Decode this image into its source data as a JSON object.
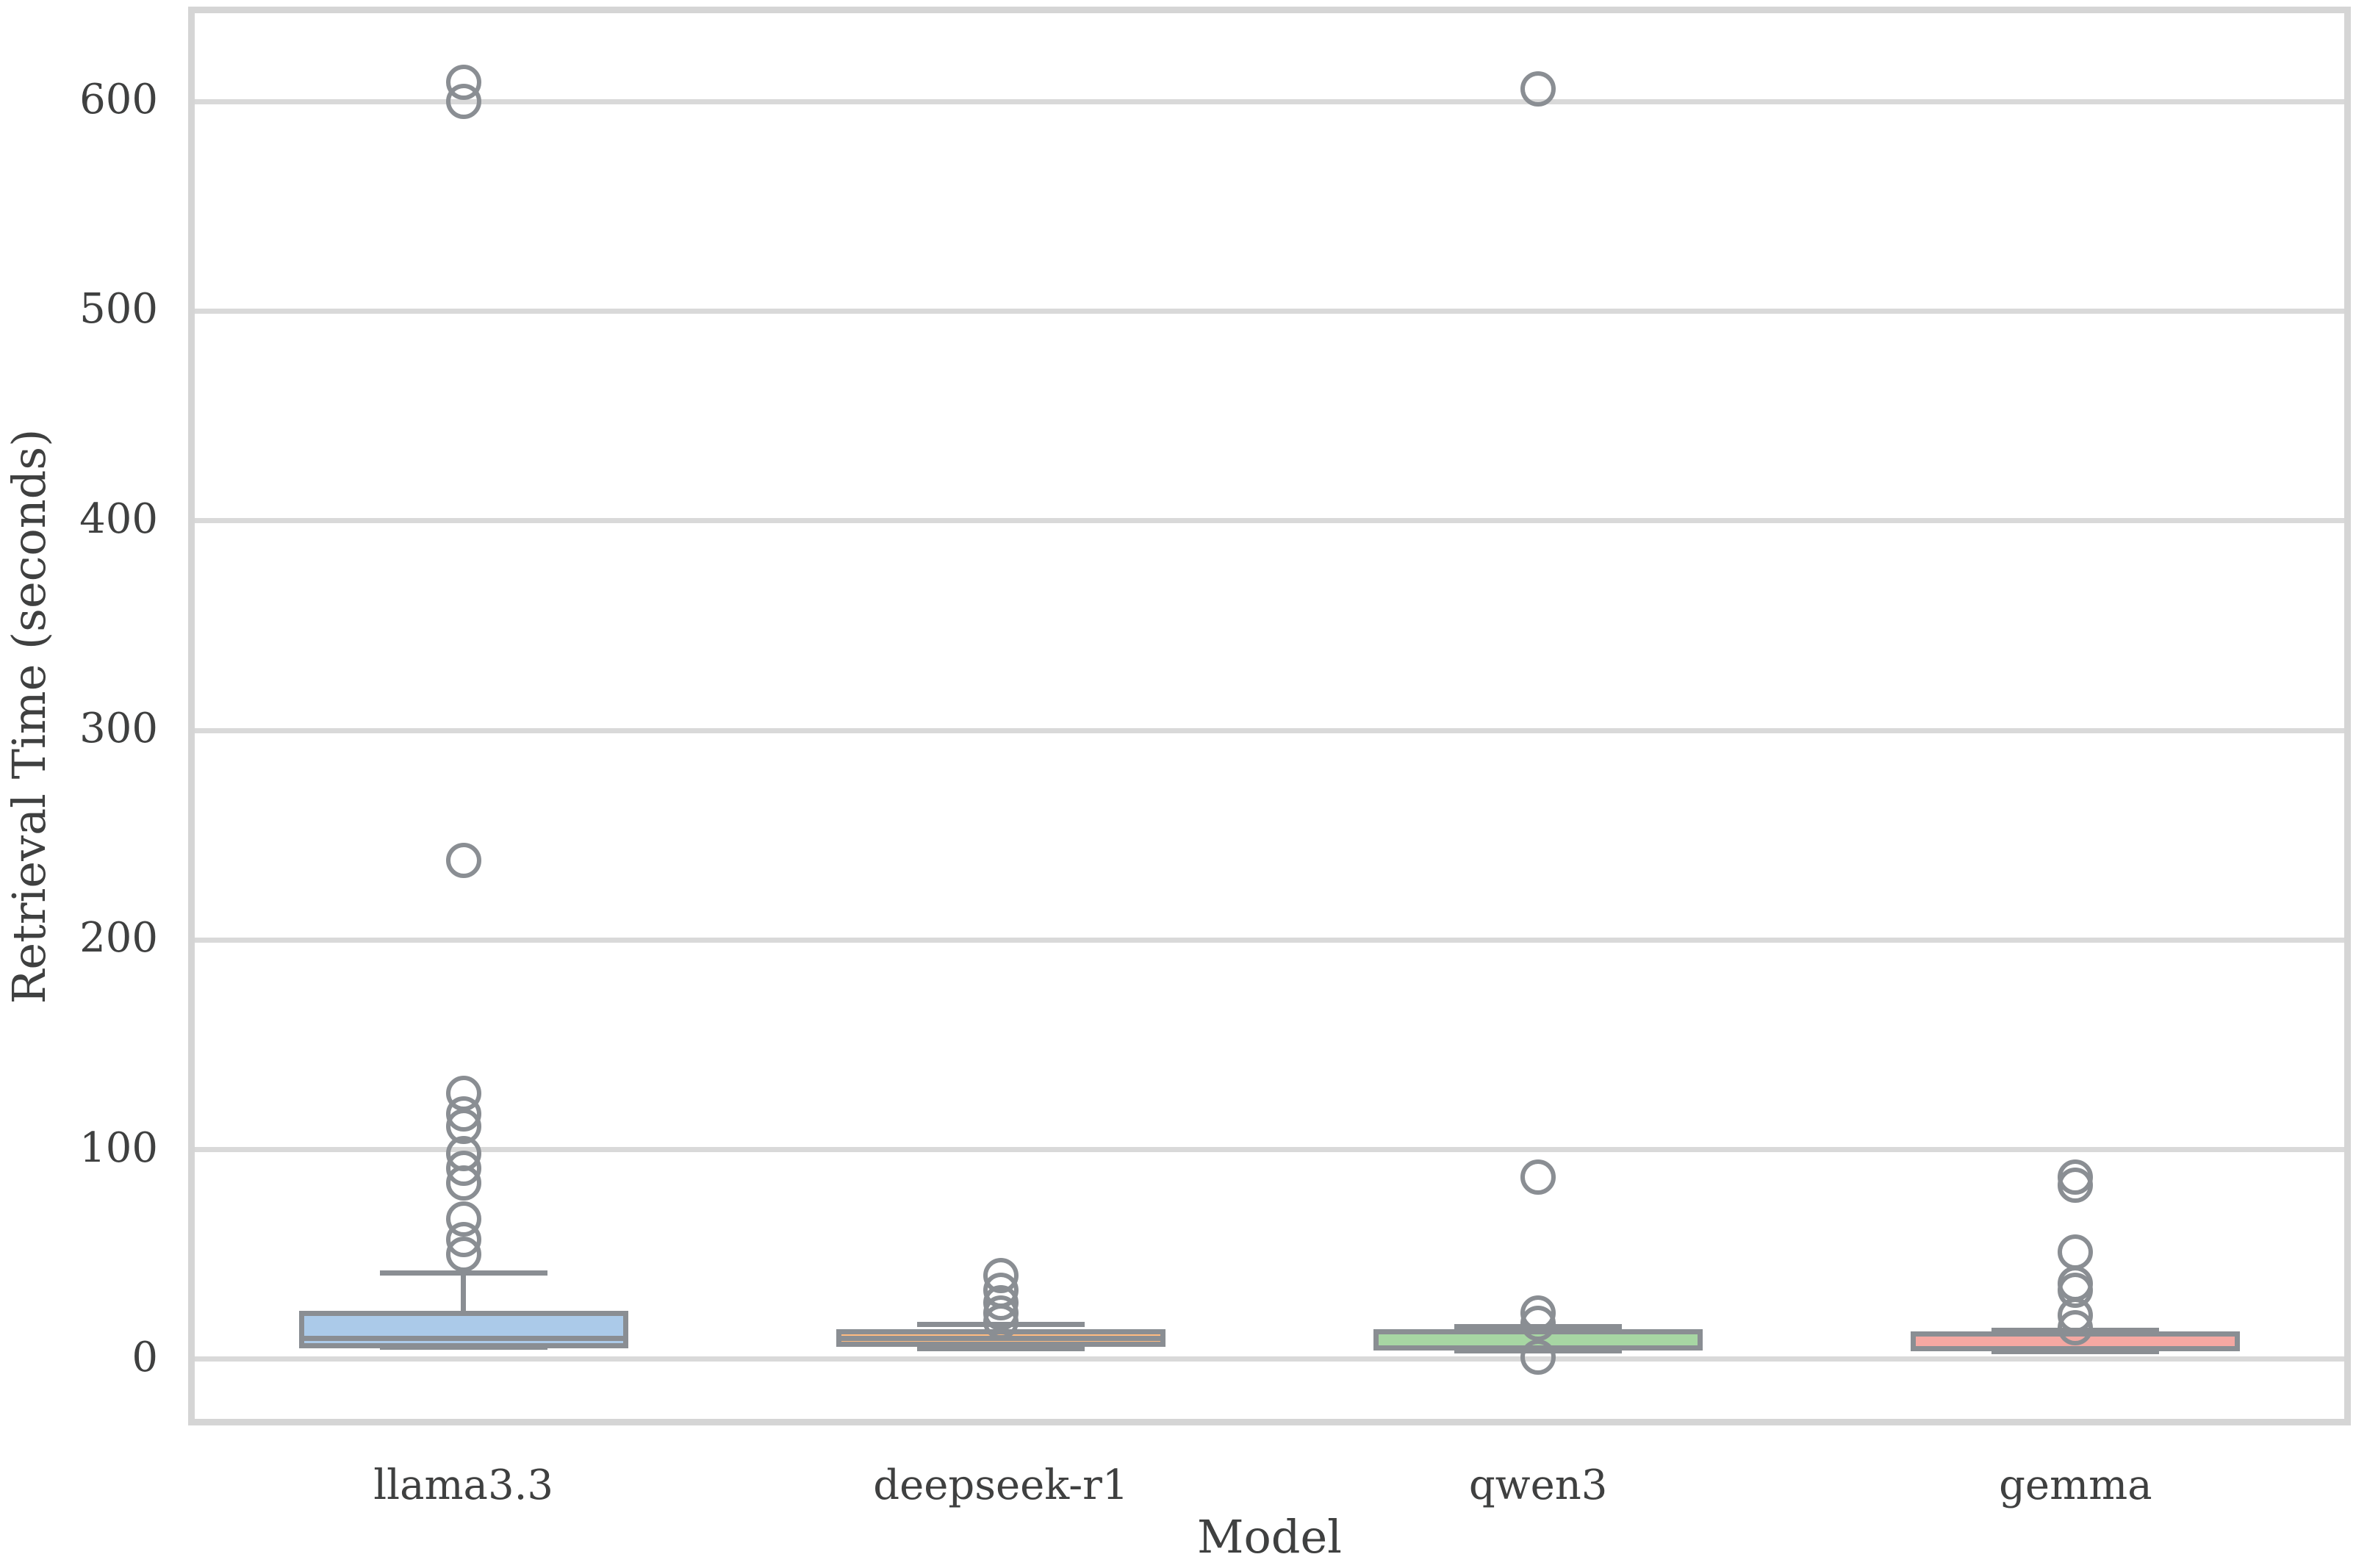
{
  "chart_data": {
    "type": "box",
    "title": "",
    "xlabel": "Model",
    "ylabel": "Retrieval Time (seconds)",
    "ylim": [
      -28.4,
      642.1
    ],
    "yticks": [
      0,
      100,
      200,
      300,
      400,
      500,
      600
    ],
    "grid": "horizontal-only",
    "legend": "none",
    "categories": [
      "llama3.3",
      "deepseek-r1",
      "qwen3",
      "gemma"
    ],
    "series": [
      {
        "model": "llama3.3",
        "whisker_low": 5.8,
        "q1": 6.5,
        "median": 10,
        "q3": 22,
        "whisker_high": 41,
        "outliers": [
          609,
          600,
          238,
          127,
          117,
          111,
          98,
          91,
          84,
          67,
          57,
          50
        ],
        "box_fill": "#abcae9",
        "median_line_visible": true
      },
      {
        "model": "deepseek-r1",
        "whisker_low": 5,
        "q1": 7,
        "median": 10,
        "q3": 13,
        "whisker_high": 16.5,
        "outliers": [
          40,
          33,
          27,
          22,
          18
        ],
        "box_fill": "#ffbb80",
        "median_line_visible": true
      },
      {
        "model": "qwen3",
        "whisker_low": 4,
        "q1": 5.5,
        "median": 9.8,
        "q3": 13,
        "whisker_high": 15.5,
        "outliers": [
          606,
          87,
          22,
          17,
          1
        ],
        "box_fill": "#a7d6a3",
        "median_line_visible": false
      },
      {
        "model": "gemma",
        "whisker_low": 3.5,
        "q1": 5.2,
        "median": 9.5,
        "q3": 12,
        "whisker_high": 14,
        "outliers": [
          87,
          83,
          51,
          36,
          33,
          21,
          15
        ],
        "box_fill": "#f5a8a2",
        "median_line_visible": false
      }
    ],
    "colors": {
      "box_line": "#8a8e93",
      "grid": "#d9d9d9",
      "spine": "#d5d5d5",
      "text": "#3f4040",
      "background": "#ffffff"
    }
  }
}
